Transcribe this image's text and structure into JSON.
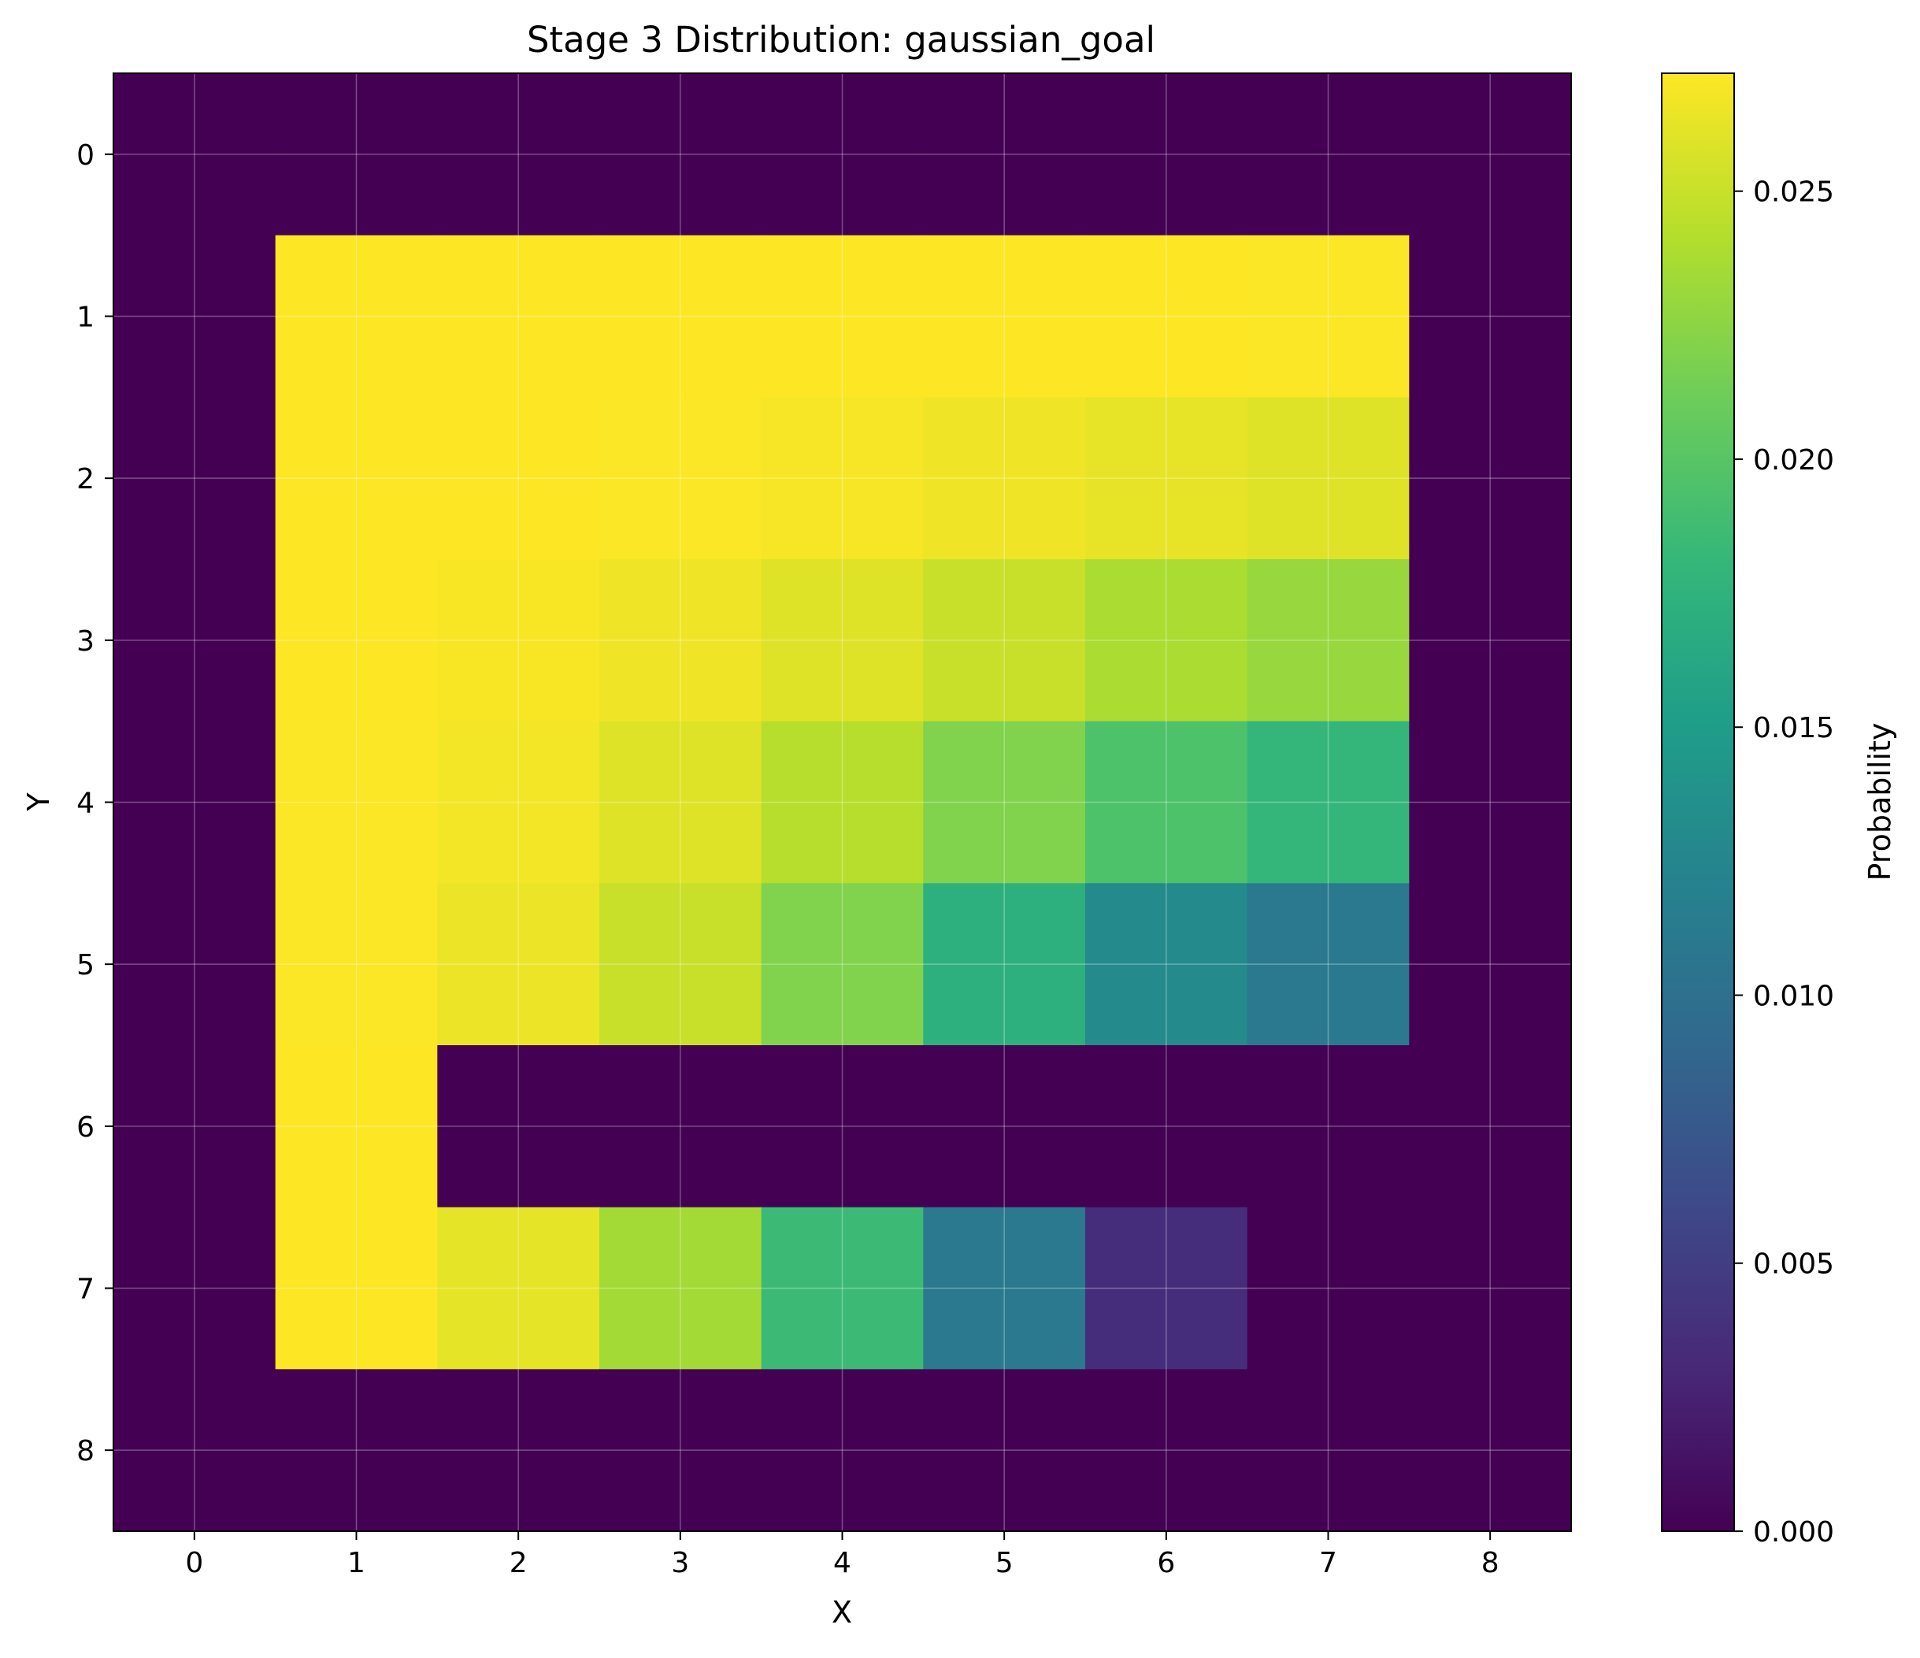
{
  "chart_data": {
    "type": "heatmap",
    "title": "Stage 3 Distribution: gaussian_goal",
    "xlabel": "X",
    "ylabel": "Y",
    "colorbar_label": "Probability",
    "colormap": "viridis",
    "x_ticks": [
      "0",
      "1",
      "2",
      "3",
      "4",
      "5",
      "6",
      "7",
      "8"
    ],
    "y_ticks": [
      "0",
      "1",
      "2",
      "3",
      "4",
      "5",
      "6",
      "7",
      "8"
    ],
    "colorbar_ticks": [
      "0.000",
      "0.005",
      "0.010",
      "0.015",
      "0.020",
      "0.025"
    ],
    "colorbar_range": [
      0.0,
      0.0272
    ],
    "grid": true,
    "values": [
      [
        0,
        0,
        0,
        0,
        0,
        0,
        0,
        0,
        0
      ],
      [
        0,
        0.0272,
        0.0272,
        0.0272,
        0.0272,
        0.0272,
        0.0272,
        0.0271,
        0
      ],
      [
        0,
        0.0272,
        0.0272,
        0.0271,
        0.0269,
        0.0266,
        0.0263,
        0.0259,
        0
      ],
      [
        0,
        0.0272,
        0.027,
        0.0266,
        0.0259,
        0.025,
        0.0238,
        0.023,
        0
      ],
      [
        0,
        0.0271,
        0.0268,
        0.0259,
        0.0243,
        0.022,
        0.0195,
        0.018,
        0
      ],
      [
        0,
        0.0271,
        0.0265,
        0.025,
        0.022,
        0.0172,
        0.013,
        0.011,
        0
      ],
      [
        0,
        0.0272,
        0,
        0,
        0,
        0,
        0,
        0,
        0
      ],
      [
        0,
        0.0272,
        0.0262,
        0.0235,
        0.0185,
        0.011,
        0.0035,
        0,
        0
      ],
      [
        0,
        0,
        0,
        0,
        0,
        0,
        0,
        0,
        0
      ]
    ]
  }
}
